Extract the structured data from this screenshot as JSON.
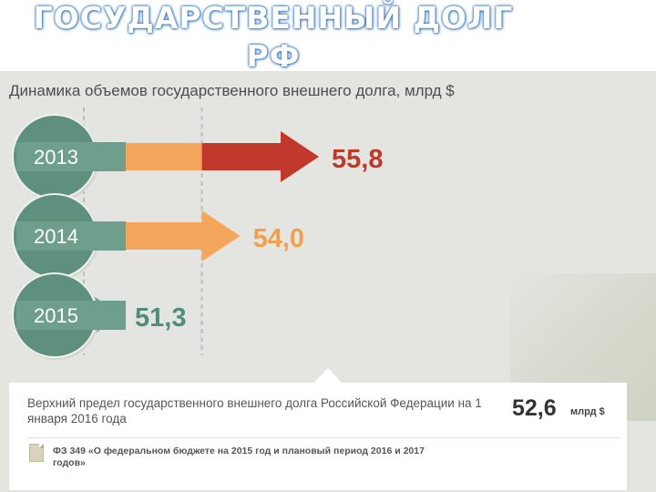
{
  "slide": {
    "title_line1": "ГОСУДАРСТВЕННЫЙ ДОЛГ",
    "title_line2": "РФ"
  },
  "chart_data": {
    "type": "bar",
    "title": "Динамика объемов государственного внешнего долга, млрд $",
    "categories": [
      "2013",
      "2014",
      "2015"
    ],
    "values": [
      55.8,
      54.0,
      51.3
    ],
    "value_labels": [
      "55,8",
      "54,0",
      "51,3"
    ],
    "orientation": "horizontal",
    "colors": {
      "green": "#6e9f8d",
      "orange": "#f4a65c",
      "red": "#c0392b",
      "circle": "#5f8f7e",
      "guide": "#bdbdbd",
      "label_red": "#c0392b",
      "label_orange": "#f0a14f",
      "label_green": "#4e8e77"
    }
  },
  "info": {
    "limit_text": "Верхний предел государственного внешнего долга Российской Федерации на 1 января 2016 года",
    "limit_value": "52,6",
    "limit_unit": "млрд $",
    "law_text": "ФЗ 349 «О федеральном бюджете на 2015 год и плановый период 2016 и 2017 годов»"
  }
}
